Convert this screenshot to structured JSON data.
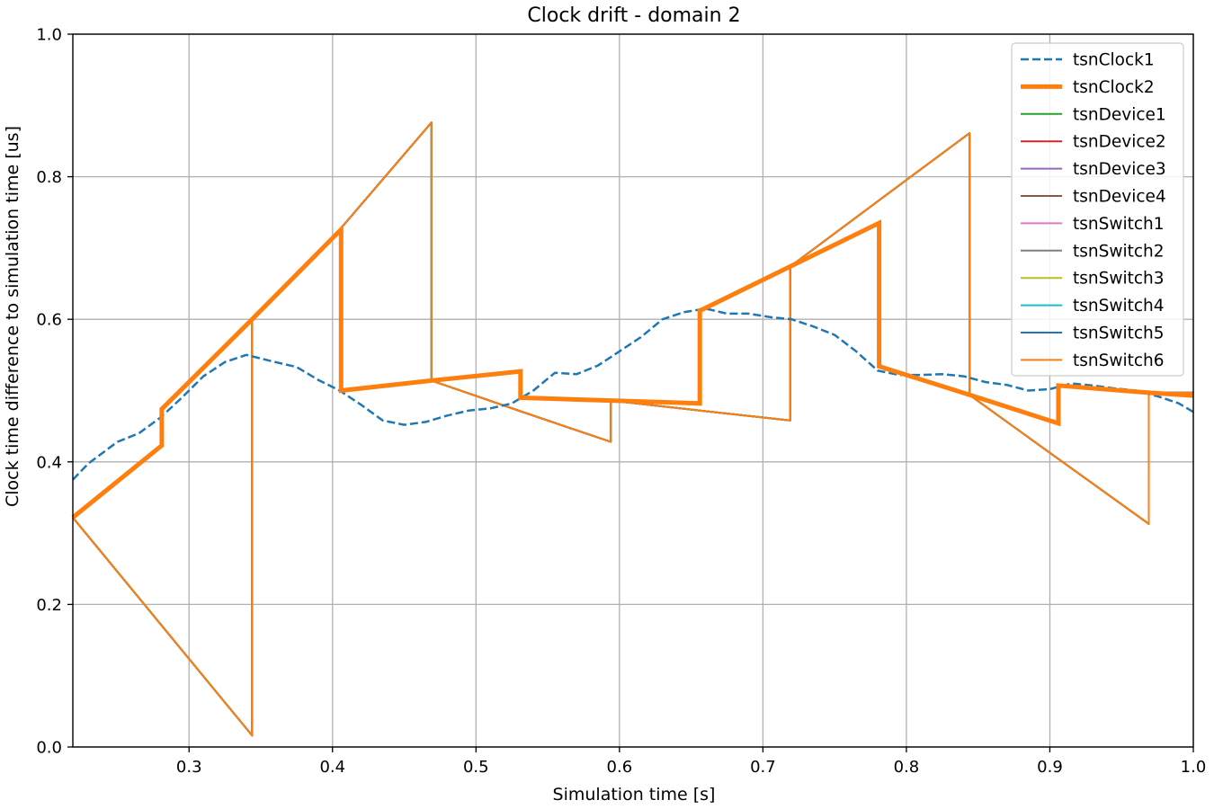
{
  "chart_data": {
    "type": "line",
    "title": "Clock drift - domain 2",
    "xlabel": "Simulation time [s]",
    "ylabel": "Clock time difference to simulation time [us]",
    "xlim": [
      0.219,
      1.0
    ],
    "ylim": [
      0.0,
      1.0
    ],
    "xticks": [
      0.3,
      0.4,
      0.5,
      0.6,
      0.7,
      0.8,
      0.9,
      1.0
    ],
    "xtick_labels": [
      "0.3",
      "0.4",
      "0.5",
      "0.6",
      "0.7",
      "0.8",
      "0.9",
      "1.0"
    ],
    "yticks": [
      0.0,
      0.2,
      0.4,
      0.6,
      0.8,
      1.0
    ],
    "ytick_labels": [
      "0.0",
      "0.2",
      "0.4",
      "0.6",
      "0.8",
      "1.0"
    ],
    "grid": true,
    "legend_position": "top-right",
    "series": [
      {
        "name": "tsnClock1",
        "color": "#1f77b4",
        "style": "dashed",
        "width": 2.5,
        "points": [
          [
            0.219,
            0.375
          ],
          [
            0.23,
            0.398
          ],
          [
            0.25,
            0.428
          ],
          [
            0.265,
            0.44
          ],
          [
            0.28,
            0.462
          ],
          [
            0.295,
            0.49
          ],
          [
            0.31,
            0.52
          ],
          [
            0.325,
            0.54
          ],
          [
            0.34,
            0.55
          ],
          [
            0.36,
            0.54
          ],
          [
            0.375,
            0.533
          ],
          [
            0.39,
            0.515
          ],
          [
            0.405,
            0.5
          ],
          [
            0.42,
            0.48
          ],
          [
            0.435,
            0.458
          ],
          [
            0.45,
            0.452
          ],
          [
            0.465,
            0.456
          ],
          [
            0.48,
            0.465
          ],
          [
            0.495,
            0.472
          ],
          [
            0.51,
            0.475
          ],
          [
            0.525,
            0.482
          ],
          [
            0.54,
            0.5
          ],
          [
            0.555,
            0.525
          ],
          [
            0.57,
            0.523
          ],
          [
            0.585,
            0.535
          ],
          [
            0.6,
            0.555
          ],
          [
            0.615,
            0.575
          ],
          [
            0.63,
            0.6
          ],
          [
            0.645,
            0.61
          ],
          [
            0.66,
            0.615
          ],
          [
            0.675,
            0.608
          ],
          [
            0.69,
            0.608
          ],
          [
            0.705,
            0.603
          ],
          [
            0.72,
            0.6
          ],
          [
            0.735,
            0.59
          ],
          [
            0.75,
            0.578
          ],
          [
            0.765,
            0.555
          ],
          [
            0.78,
            0.528
          ],
          [
            0.795,
            0.522
          ],
          [
            0.81,
            0.522
          ],
          [
            0.825,
            0.523
          ],
          [
            0.84,
            0.52
          ],
          [
            0.855,
            0.512
          ],
          [
            0.87,
            0.508
          ],
          [
            0.885,
            0.5
          ],
          [
            0.9,
            0.502
          ],
          [
            0.915,
            0.51
          ],
          [
            0.93,
            0.507
          ],
          [
            0.945,
            0.503
          ],
          [
            0.96,
            0.5
          ],
          [
            0.975,
            0.492
          ],
          [
            0.99,
            0.482
          ],
          [
            1.0,
            0.47
          ]
        ]
      },
      {
        "name": "tsnClock2",
        "color": "#ff7f0e",
        "style": "solid",
        "width": 5,
        "points": [
          [
            0.219,
            0.322
          ],
          [
            0.281,
            0.423
          ],
          [
            0.281,
            0.474
          ],
          [
            0.344,
            0.6
          ],
          [
            0.406,
            0.726
          ],
          [
            0.406,
            0.5
          ],
          [
            0.469,
            0.514
          ],
          [
            0.531,
            0.527
          ],
          [
            0.531,
            0.49
          ],
          [
            0.594,
            0.486
          ],
          [
            0.656,
            0.482
          ],
          [
            0.656,
            0.612
          ],
          [
            0.719,
            0.674
          ],
          [
            0.781,
            0.735
          ],
          [
            0.781,
            0.534
          ],
          [
            0.844,
            0.494
          ],
          [
            0.906,
            0.454
          ],
          [
            0.906,
            0.507
          ],
          [
            0.969,
            0.497
          ],
          [
            1.0,
            0.493
          ]
        ]
      },
      {
        "name": "tsnDevice1",
        "color": "#2ca02c",
        "style": "solid",
        "width": 2,
        "points": []
      },
      {
        "name": "tsnDevice2",
        "color": "#d62728",
        "style": "solid",
        "width": 2,
        "points": []
      },
      {
        "name": "tsnDevice3",
        "color": "#9467bd",
        "style": "solid",
        "width": 2,
        "points": []
      },
      {
        "name": "tsnDevice4",
        "color": "#8c564b",
        "style": "solid",
        "width": 2,
        "points": []
      },
      {
        "name": "tsnSwitch1",
        "color": "#e377c2",
        "style": "solid",
        "width": 2,
        "points": []
      },
      {
        "name": "tsnSwitch2",
        "color": "#7f7f7f",
        "style": "solid",
        "width": 2,
        "points": []
      },
      {
        "name": "tsnSwitch3",
        "color": "#bcbd22",
        "style": "solid",
        "width": 2,
        "points": []
      },
      {
        "name": "tsnSwitch4",
        "color": "#17becf",
        "style": "solid",
        "width": 2,
        "points": []
      },
      {
        "name": "tsnSwitch5",
        "color": "#1f77b4",
        "style": "solid",
        "width": 2,
        "points": []
      },
      {
        "name": "tsnSwitch6",
        "color": "#ff7f0e",
        "style": "solid",
        "width": 2,
        "points": [
          [
            0.219,
            0.322
          ],
          [
            0.344,
            0.016
          ],
          [
            0.344,
            0.6
          ],
          [
            0.406,
            0.728
          ],
          [
            0.469,
            0.876
          ],
          [
            0.469,
            0.514
          ],
          [
            0.531,
            0.471
          ],
          [
            0.594,
            0.428
          ],
          [
            0.594,
            0.486
          ],
          [
            0.656,
            0.472
          ],
          [
            0.719,
            0.458
          ],
          [
            0.719,
            0.674
          ],
          [
            0.781,
            0.767
          ],
          [
            0.844,
            0.861
          ],
          [
            0.844,
            0.494
          ],
          [
            0.906,
            0.404
          ],
          [
            0.969,
            0.313
          ],
          [
            0.969,
            0.497
          ],
          [
            1.0,
            0.497
          ]
        ]
      }
    ]
  }
}
